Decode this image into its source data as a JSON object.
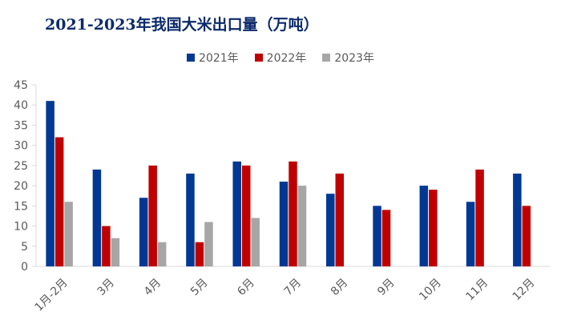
{
  "chart_data": {
    "type": "bar",
    "title": "2021-2023年我国大米出口量（万吨）",
    "xlabel": "",
    "ylabel": "",
    "ylim": [
      0,
      45
    ],
    "ytick_step": 5,
    "grid": false,
    "legend_position": "top-center",
    "categories": [
      "1月-2月",
      "3月",
      "4月",
      "5月",
      "6月",
      "7月",
      "8月",
      "9月",
      "10月",
      "11月",
      "12月"
    ],
    "series": [
      {
        "name": "2021年",
        "color": "#003893",
        "values": [
          41,
          24,
          17,
          23,
          26,
          21,
          18,
          15,
          20,
          16,
          23
        ]
      },
      {
        "name": "2022年",
        "color": "#c00000",
        "values": [
          32,
          10,
          25,
          6,
          25,
          26,
          23,
          14,
          19,
          24,
          15
        ]
      },
      {
        "name": "2023年",
        "color": "#a6a6a6",
        "values": [
          16,
          7,
          6,
          11,
          12,
          20,
          null,
          null,
          null,
          null,
          null
        ]
      }
    ]
  }
}
